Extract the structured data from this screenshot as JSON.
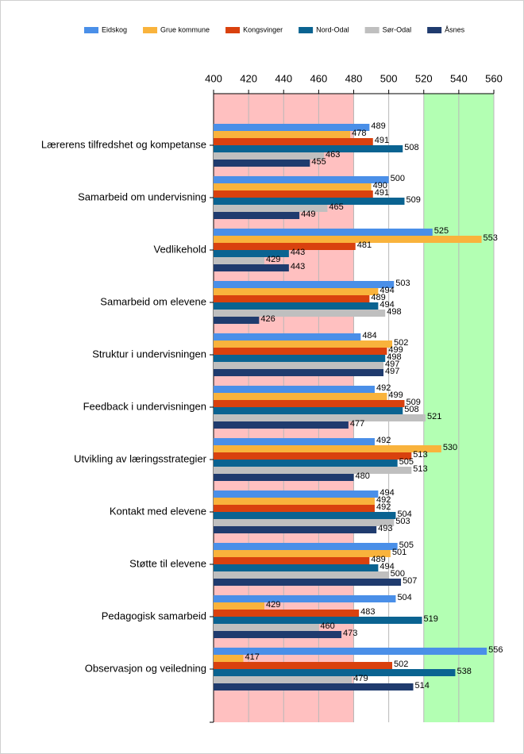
{
  "chart_data": {
    "type": "hbar",
    "categories": [
      "Lærerens tilfredshet og kompetanse",
      "Samarbeid om undervisning",
      "Vedlikehold",
      "Samarbeid om elevene",
      "Struktur i undervisningen",
      "Feedback i undervisningen",
      "Utvikling av læringsstrategier",
      "Kontakt med elevene",
      "Støtte til elevene",
      "Pedagogisk samarbeid",
      "Observasjon og veiledning"
    ],
    "series": [
      {
        "name": "Eidskog",
        "color": "#4a8fe8",
        "values": [
          489,
          500,
          525,
          503,
          484,
          492,
          492,
          494,
          505,
          504,
          556
        ]
      },
      {
        "name": "Grue kommune",
        "color": "#f9b33c",
        "values": [
          478,
          490,
          553,
          494,
          502,
          499,
          530,
          492,
          501,
          429,
          417
        ]
      },
      {
        "name": "Kongsvinger",
        "color": "#d9410e",
        "values": [
          491,
          491,
          481,
          489,
          499,
          509,
          513,
          492,
          489,
          483,
          502
        ]
      },
      {
        "name": "Nord-Odal",
        "color": "#0a6391",
        "values": [
          508,
          509,
          443,
          494,
          498,
          508,
          505,
          504,
          494,
          519,
          538
        ]
      },
      {
        "name": "Sør-Odal",
        "color": "#bfbfbf",
        "values": [
          463,
          465,
          429,
          498,
          497,
          521,
          513,
          503,
          500,
          460,
          479
        ]
      },
      {
        "name": "Åsnes",
        "color": "#1f3b6e",
        "values": [
          455,
          449,
          443,
          426,
          497,
          477,
          480,
          493,
          507,
          473,
          514
        ]
      }
    ],
    "xlim": [
      400,
      560
    ],
    "xticks": [
      400,
      420,
      440,
      460,
      480,
      500,
      520,
      540,
      560
    ],
    "grid": true,
    "bands": [
      {
        "from": 400,
        "to": 480,
        "color": "#ffc0c0"
      },
      {
        "from": 520,
        "to": 560,
        "color": "#b3ffb3"
      }
    ],
    "legend": "top"
  }
}
